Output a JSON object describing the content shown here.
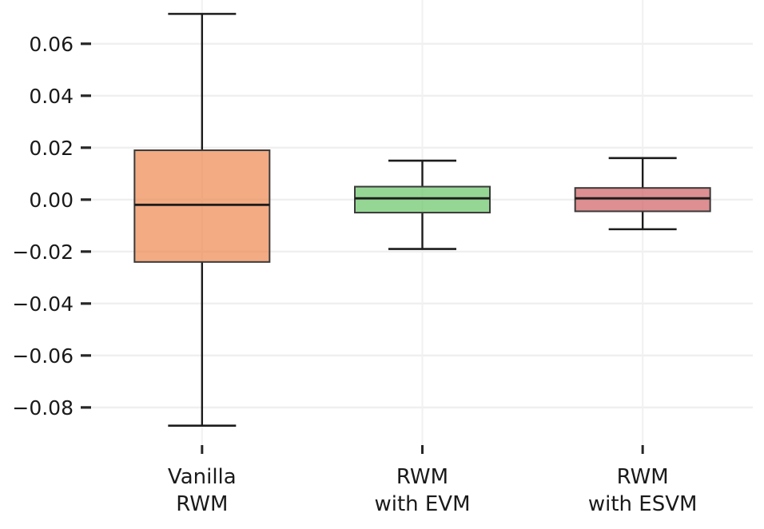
{
  "figure": {
    "background": "#ffffff"
  },
  "chart_data": {
    "type": "boxplot",
    "title": "",
    "xlabel": "",
    "ylabel": "",
    "grid": true,
    "legend": "none",
    "ylim": [
      -0.0948,
      0.075
    ],
    "yticks": [
      {
        "value": 0.06,
        "label": "0.06"
      },
      {
        "value": 0.04,
        "label": "0.04"
      },
      {
        "value": 0.02,
        "label": "0.02"
      },
      {
        "value": 0.0,
        "label": "0.00"
      },
      {
        "value": -0.02,
        "label": "−0.02"
      },
      {
        "value": -0.04,
        "label": "−0.04"
      },
      {
        "value": -0.06,
        "label": "−0.06"
      },
      {
        "value": -0.08,
        "label": "−0.08"
      }
    ],
    "categories": [
      "Vanilla RWM",
      "RWM with EVM",
      "RWM with ESVM"
    ],
    "series": [
      {
        "name": "Vanilla RWM",
        "label_lines": [
          "Vanilla",
          "RWM"
        ],
        "whisker_high": 0.0715,
        "q3": 0.019,
        "median": -0.002,
        "q1": -0.024,
        "whisker_low": -0.087,
        "fill": "#EC884F",
        "fill_opacity": 0.7
      },
      {
        "name": "RWM with EVM",
        "label_lines": [
          "RWM",
          "with EVM"
        ],
        "whisker_high": 0.015,
        "q3": 0.005,
        "median": 0.0005,
        "q1": -0.005,
        "whisker_low": -0.019,
        "fill": "#6AC468",
        "fill_opacity": 0.7
      },
      {
        "name": "RWM with ESVM",
        "label_lines": [
          "RWM",
          "with ESVM"
        ],
        "whisker_high": 0.016,
        "q3": 0.0045,
        "median": 0.0005,
        "q1": -0.0045,
        "whisker_low": -0.0114,
        "fill": "#CE5F62",
        "fill_opacity": 0.7
      }
    ],
    "colors": {
      "grid": "#efefef",
      "grid_vertical": "#f1f1f1",
      "tick": "#262626",
      "text": "#1a1a1a",
      "whisker": "#1c1c1c",
      "median": "#1c1c1c",
      "box_edge": "#3a3a3a"
    }
  }
}
